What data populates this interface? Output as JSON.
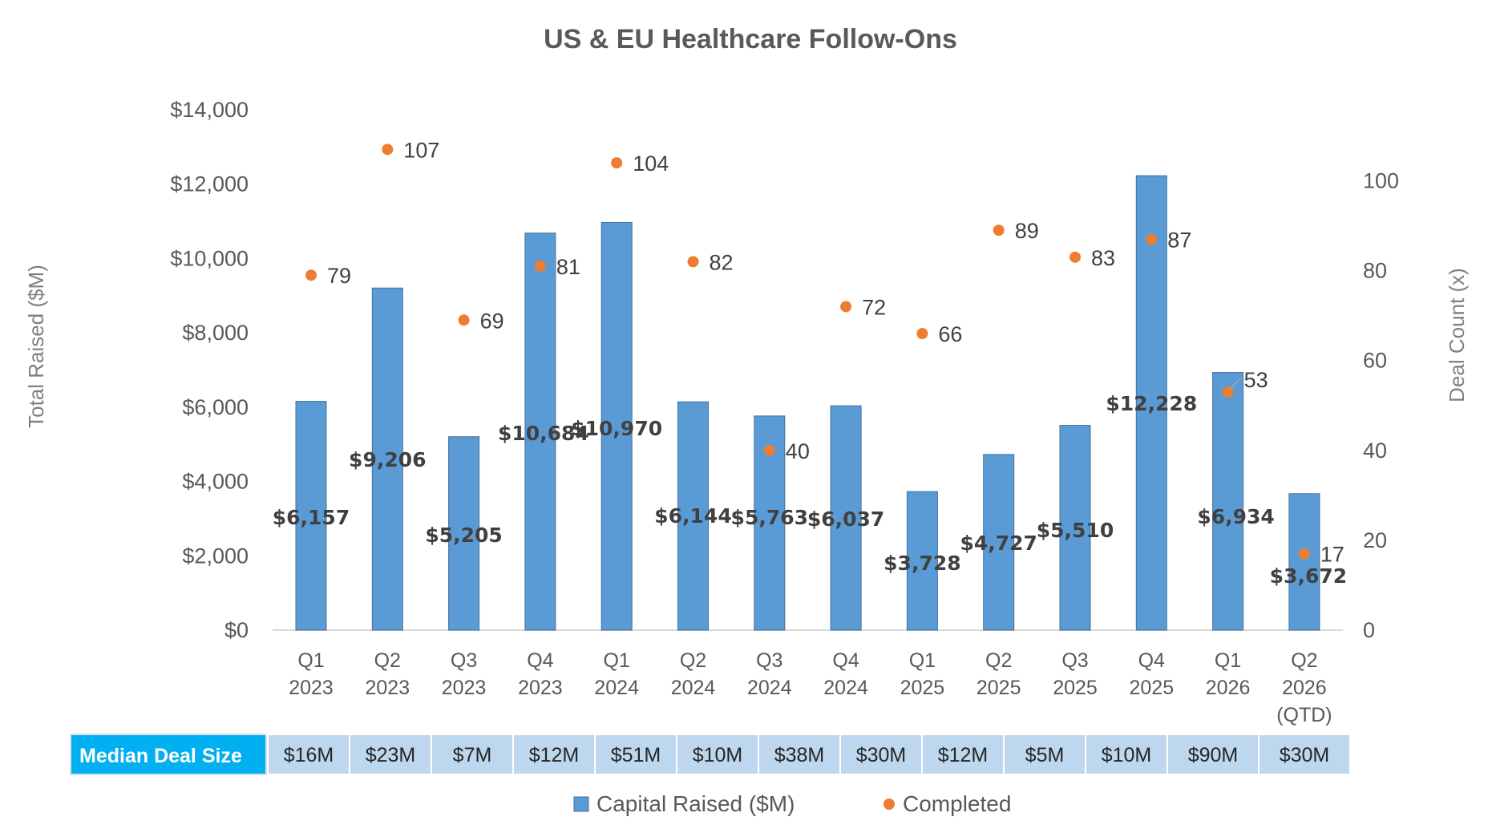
{
  "chart_data": {
    "type": "bar",
    "title": "US & EU Healthcare Follow-Ons",
    "ylabel": "Total Raised ($M)",
    "y2label": "Deal Count (x)",
    "ylim": [
      0,
      14000
    ],
    "y2lim": [
      0,
      115.8
    ],
    "yticks": [
      "$0",
      "$2,000",
      "$4,000",
      "$6,000",
      "$8,000",
      "$10,000",
      "$12,000",
      "$14,000"
    ],
    "ytick_values": [
      0,
      2000,
      4000,
      6000,
      8000,
      10000,
      12000,
      14000
    ],
    "y2ticks": [
      "0",
      "20",
      "40",
      "60",
      "80",
      "100"
    ],
    "y2tick_values": [
      0,
      20,
      40,
      60,
      80,
      100
    ],
    "categories": [
      [
        "Q1",
        "2023"
      ],
      [
        "Q2",
        "2023"
      ],
      [
        "Q3",
        "2023"
      ],
      [
        "Q4",
        "2023"
      ],
      [
        "Q1",
        "2024"
      ],
      [
        "Q2",
        "2024"
      ],
      [
        "Q3",
        "2024"
      ],
      [
        "Q4",
        "2024"
      ],
      [
        "Q1",
        "2025"
      ],
      [
        "Q2",
        "2025"
      ],
      [
        "Q3",
        "2025"
      ],
      [
        "Q4",
        "2025"
      ],
      [
        "Q1",
        "2026"
      ],
      [
        "Q2",
        "2026",
        "(QTD)"
      ]
    ],
    "series": [
      {
        "name": "Capital Raised ($M)",
        "type": "bar",
        "color": "#5b9bd5",
        "values": [
          6157,
          9206,
          5205,
          10684,
          10970,
          6144,
          5763,
          6037,
          3728,
          4727,
          5510,
          12228,
          6934,
          3672
        ],
        "labels": [
          "$6,157",
          "$9,206",
          "$5,205",
          "$10,684",
          "$10,970",
          "$6,144",
          "$5,763",
          "$6,037",
          "$3,728",
          "$4,727",
          "$5,510",
          "$12,228",
          "$6,934",
          "$3,672"
        ]
      },
      {
        "name": "Completed",
        "type": "scatter",
        "axis": "secondary",
        "color": "#ed7d31",
        "values": [
          79,
          107,
          69,
          81,
          104,
          82,
          40,
          72,
          66,
          89,
          83,
          87,
          53,
          17
        ],
        "labels": [
          "79",
          "107",
          "69",
          "81",
          "104",
          "82",
          "40",
          "72",
          "66",
          "89",
          "83",
          "87",
          "53",
          "17"
        ]
      }
    ],
    "median_table": {
      "label": "Median Deal Size",
      "values": [
        "$16M",
        "$23M",
        "$7M",
        "$12M",
        "$51M",
        "$10M",
        "$38M",
        "$30M",
        "$12M",
        "$5M",
        "$10M",
        "$90M",
        "$30M"
      ]
    },
    "legend": [
      "Capital Raised ($M)",
      "Completed"
    ],
    "grid": false
  }
}
